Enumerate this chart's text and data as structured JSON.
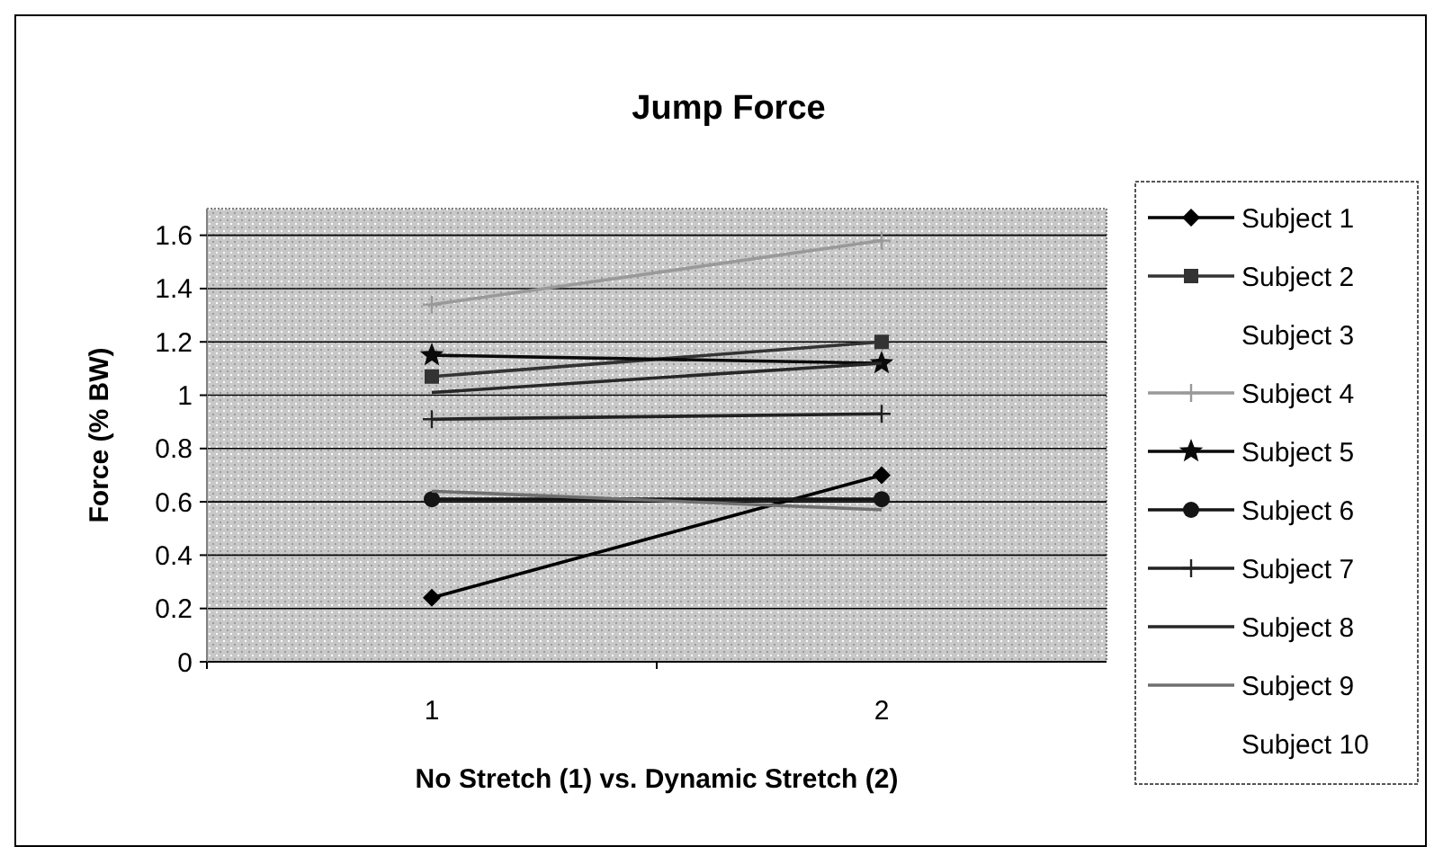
{
  "chart_data": {
    "type": "line",
    "title": "Jump Force",
    "xlabel": "No Stretch (1) vs. Dynamic Stretch (2)",
    "ylabel": "Force (% BW)",
    "categories": [
      "1",
      "2"
    ],
    "series": [
      {
        "name": "Subject 1",
        "color": "#000000",
        "marker": "diamond",
        "values": [
          0.24,
          0.7
        ]
      },
      {
        "name": "Subject 2",
        "color": "#333333",
        "marker": "square",
        "values": [
          1.07,
          1.2
        ]
      },
      {
        "name": "Subject 3",
        "marker": "none",
        "values": [
          null,
          null
        ]
      },
      {
        "name": "Subject 4",
        "color": "#999999",
        "marker": "cross",
        "values": [
          1.34,
          1.58
        ]
      },
      {
        "name": "Subject 5",
        "color": "#0a0a0a",
        "marker": "star",
        "values": [
          1.15,
          1.12
        ]
      },
      {
        "name": "Subject 6",
        "color": "#151515",
        "marker": "circle",
        "values": [
          0.61,
          0.61
        ]
      },
      {
        "name": "Subject 7",
        "color": "#222222",
        "marker": "cross",
        "values": [
          0.91,
          0.93
        ]
      },
      {
        "name": "Subject 8",
        "color": "#282828",
        "marker": "none",
        "values": [
          1.01,
          1.12
        ]
      },
      {
        "name": "Subject 9",
        "color": "#6f6f6f",
        "marker": "none",
        "values": [
          0.64,
          0.57
        ]
      },
      {
        "name": "Subject 10",
        "marker": "none",
        "values": [
          null,
          null
        ]
      }
    ],
    "ylim": [
      0,
      1.7
    ],
    "yticks": [
      0,
      0.2,
      0.4,
      0.6,
      0.8,
      1,
      1.2,
      1.4,
      1.6
    ],
    "grid": "y",
    "legend": "right"
  }
}
